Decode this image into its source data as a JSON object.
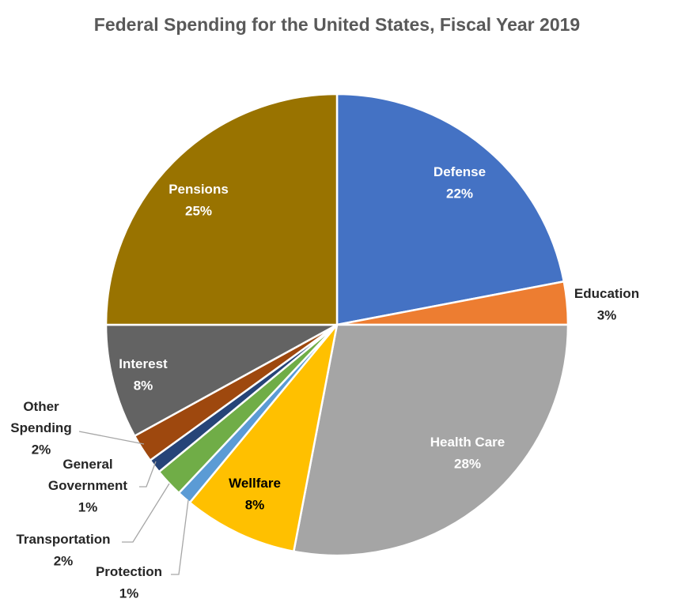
{
  "chart_data": {
    "type": "pie",
    "title": "Federal Spending for the United States, Fiscal Year 2019",
    "start_angle_deg": 0,
    "direction": "clockwise",
    "slices": [
      {
        "label": "Defense",
        "value": 22,
        "value_label": "22%",
        "color": "#4472C4",
        "text_color": "#ffffff"
      },
      {
        "label": "Education",
        "value": 3,
        "value_label": "3%",
        "color": "#ED7D31",
        "text_color": "#262626"
      },
      {
        "label": "Health Care",
        "value": 28,
        "value_label": "28%",
        "color": "#A5A5A5",
        "text_color": "#ffffff"
      },
      {
        "label": "Wellfare",
        "value": 8,
        "value_label": "8%",
        "color": "#FFC000",
        "text_color": "#000000"
      },
      {
        "label": "Protection",
        "value": 1,
        "value_label": "1%",
        "color": "#5B9BD5",
        "text_color": "#262626"
      },
      {
        "label": "Transportation",
        "value": 2,
        "value_label": "2%",
        "color": "#70AD47",
        "text_color": "#262626"
      },
      {
        "label": "General Government",
        "value": 1,
        "value_label": "1%",
        "color": "#264478",
        "text_color": "#262626"
      },
      {
        "label": "Other Spending",
        "value": 2,
        "value_label": "2%",
        "color": "#9E480E",
        "text_color": "#262626"
      },
      {
        "label": "Interest",
        "value": 8,
        "value_label": "8%",
        "color": "#636363",
        "text_color": "#ffffff"
      },
      {
        "label": "Pensions",
        "value": 25,
        "value_label": "25%",
        "color": "#997300",
        "text_color": "#ffffff"
      }
    ]
  }
}
